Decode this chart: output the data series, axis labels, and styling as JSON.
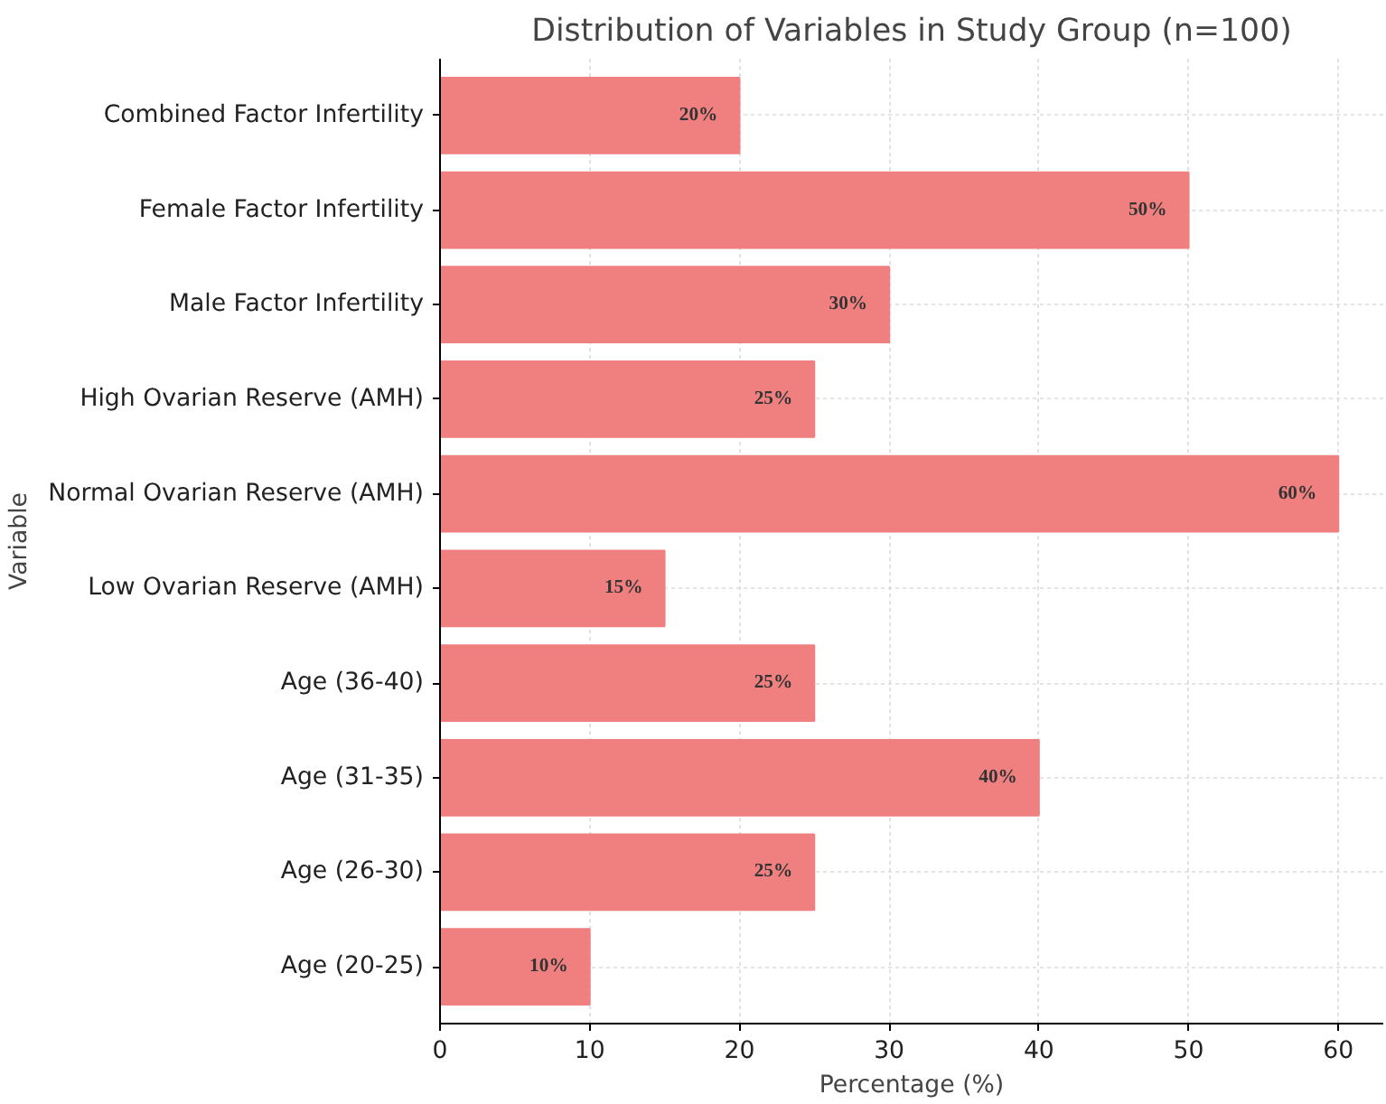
{
  "chart_data": {
    "type": "bar",
    "orientation": "horizontal",
    "title": "Distribution of Variables in Study Group (n=100)",
    "xlabel": "Percentage (%)",
    "ylabel": "Variable",
    "categories": [
      "Combined Factor Infertility",
      "Female Factor Infertility",
      "Male Factor Infertility",
      "High Ovarian Reserve (AMH)",
      "Normal Ovarian Reserve (AMH)",
      "Low Ovarian Reserve (AMH)",
      "Age (36-40)",
      "Age (31-35)",
      "Age (26-30)",
      "Age (20-25)"
    ],
    "values": [
      20,
      50,
      30,
      25,
      60,
      15,
      25,
      40,
      25,
      10
    ],
    "value_labels": [
      "20%",
      "50%",
      "30%",
      "25%",
      "60%",
      "15%",
      "25%",
      "40%",
      "25%",
      "10%"
    ],
    "color": "#f08080",
    "xlim": [
      0,
      63
    ],
    "xticks": [
      0,
      10,
      20,
      30,
      40,
      50,
      60
    ],
    "grid": true
  }
}
